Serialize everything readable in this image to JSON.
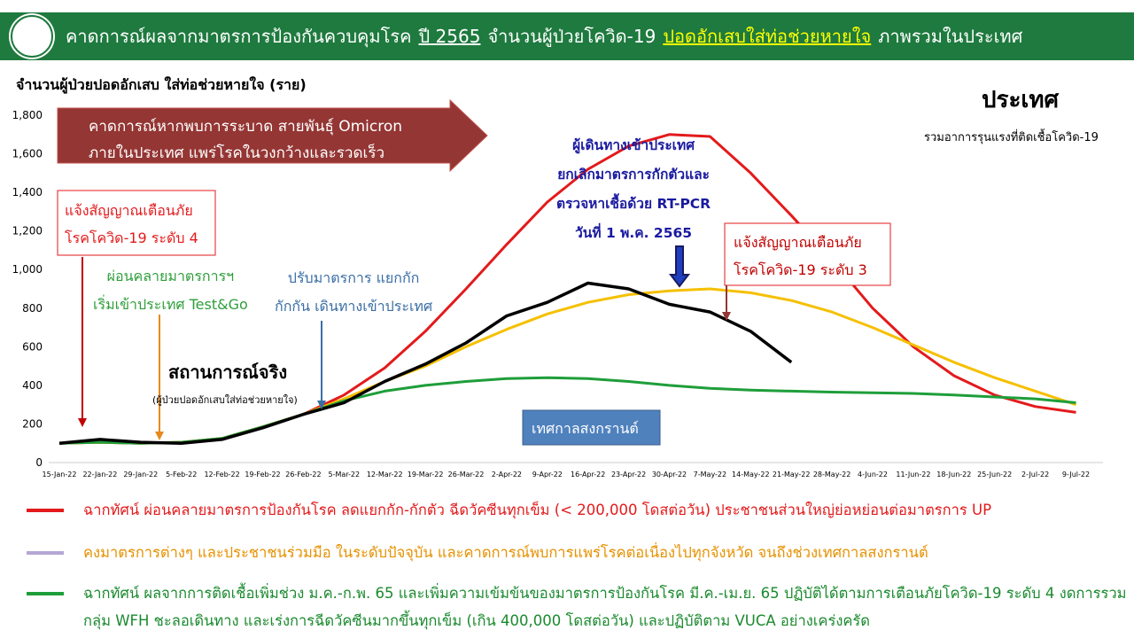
{
  "header": {
    "title_parts": [
      "คาดการณ์ผลจากมาตรการป้องกันควบคุมโรค",
      "ปี 2565",
      "จำนวนผู้ป่วยโควิด-19",
      "ปอดอักเสบใส่ท่อช่วยหายใจ",
      "ภาพรวมในประเทศ"
    ]
  },
  "chart_data": {
    "type": "line",
    "y_label": "จำนวนผู้ป่วยปอดอักเสบ ใส่ท่อช่วยหายใจ (ราย)",
    "region_title": "ประเทศ",
    "region_subtitle": "รวมอาการรุนแรงที่ติดเชื้อโควิด-19",
    "categories": [
      "15-Jan-22",
      "22-Jan-22",
      "29-Jan-22",
      "5-Feb-22",
      "12-Feb-22",
      "19-Feb-22",
      "26-Feb-22",
      "5-Mar-22",
      "12-Mar-22",
      "19-Mar-22",
      "26-Mar-22",
      "2-Apr-22",
      "9-Apr-22",
      "16-Apr-22",
      "23-Apr-22",
      "30-Apr-22",
      "7-May-22",
      "14-May-22",
      "21-May-22",
      "28-May-22",
      "4-Jun-22",
      "11-Jun-22",
      "18-Jun-22",
      "25-Jun-22",
      "2-Jul-22",
      "9-Jul-22"
    ],
    "ylim": [
      0,
      1800
    ],
    "yticks": [
      0,
      200,
      400,
      600,
      800,
      {
        "value": 1000,
        "label": "1,000"
      },
      {
        "value": 1200,
        "label": "1,200"
      },
      {
        "value": 1400,
        "label": "1,400"
      },
      {
        "value": 1600,
        "label": "1,600"
      },
      {
        "value": 1800,
        "label": "1,800"
      }
    ],
    "series": [
      {
        "name": "ฉากทัศน์ ผ่อนคลายมาตรการป้องกันโรค ลดแยกกัก-กักตัว ฉีดวัคซีนทุกเข็ม (< 200,000 โดสต่อวัน) ประชาชนส่วนใหญ่ย่อหย่อนต่อมาตรการ UP",
        "color": "#e31a1c",
        "legend_color": "#e31a1c",
        "text_color": "#e31a1c",
        "values": [
          100,
          105,
          100,
          105,
          125,
          185,
          250,
          350,
          490,
          680,
          900,
          1130,
          1350,
          1520,
          1640,
          1700,
          1690,
          1500,
          1280,
          1050,
          800,
          600,
          450,
          350,
          290,
          260
        ]
      },
      {
        "name": "คงมาตรการต่างๆ และประชาชนร่วมมือ ในระดับปัจจุบัน และคาดการณ์พบการแพร่โรคต่อเนื่องไปทุกจังหวัด จนถึงช่วงเทศกาลสงกรานต์",
        "color": "#f5c000",
        "legend_color": "#b4a7d6",
        "text_color": "#e69100",
        "values": [
          100,
          105,
          100,
          105,
          125,
          185,
          250,
          330,
          420,
          500,
          600,
          690,
          770,
          830,
          870,
          890,
          900,
          880,
          840,
          780,
          700,
          610,
          520,
          440,
          370,
          300
        ]
      },
      {
        "name": "ฉากทัศน์ ผลจากการติดเชื้อเพิ่มช่วง ม.ค.-ก.พ. 65 และเพิ่มความเข้มข้นของมาตรการป้องกันโรค มี.ค.-เม.ย. 65 ปฏิบัติได้ตามการเตือนภัยโควิด-19 ระดับ 4 งดการรวมกลุ่ม WFH ชะลอเดินทาง และเร่งการฉีดวัคซีนมากขึ้นทุกเข็ม (เกิน 400,000 โดสต่อวัน) และปฏิบัติตาม VUCA อย่างเคร่งครัด",
        "color": "#1e9e3a",
        "legend_color": "#1e9e3a",
        "text_color": "#1a8a2e",
        "values": [
          100,
          105,
          100,
          105,
          125,
          185,
          250,
          320,
          370,
          400,
          420,
          435,
          440,
          435,
          420,
          400,
          385,
          375,
          370,
          365,
          362,
          358,
          350,
          340,
          330,
          310
        ]
      },
      {
        "name": "สถานการณ์จริง",
        "color": "#000000",
        "values": [
          100,
          120,
          105,
          100,
          120,
          180,
          250,
          310,
          420,
          510,
          620,
          760,
          830,
          930,
          900,
          820,
          780,
          680,
          520,
          null,
          null,
          null,
          null,
          null,
          null,
          null
        ]
      }
    ],
    "annotations": {
      "omicron": [
        "คาดการณ์หากพบการระบาด สายพันธุ์ Omicron",
        "ภายในประเทศ แพร่โรคในวงกว้างและรวดเร็ว"
      ],
      "alert4": [
        "แจ้งสัญญาณเตือนภัย",
        "โรคโควิด-19 ระดับ 4"
      ],
      "relax": [
        "ผ่อนคลายมาตรการฯ",
        "เริ่มเข้าประเทศ Test&Go"
      ],
      "adjust": [
        "ปรับมาตรการ แยกกัก",
        "กักกัน เดินทางเข้าประเทศ"
      ],
      "actual_note": "(ผู้ป่วยปอดอักเสบใส่ท่อช่วยหายใจ)",
      "travel": [
        "ผู้เดินทางเข้าประเทศ",
        "ยกเลิกมาตรการกักตัวและ",
        "ตรวจหาเชื้อด้วย RT-PCR",
        "วันที่ 1 พ.ค. 2565"
      ],
      "alert3": [
        "แจ้งสัญญาณเตือนภัย",
        "โรคโควิด-19 ระดับ 3"
      ],
      "songkran": "เทศกาลสงกรานต์"
    }
  }
}
